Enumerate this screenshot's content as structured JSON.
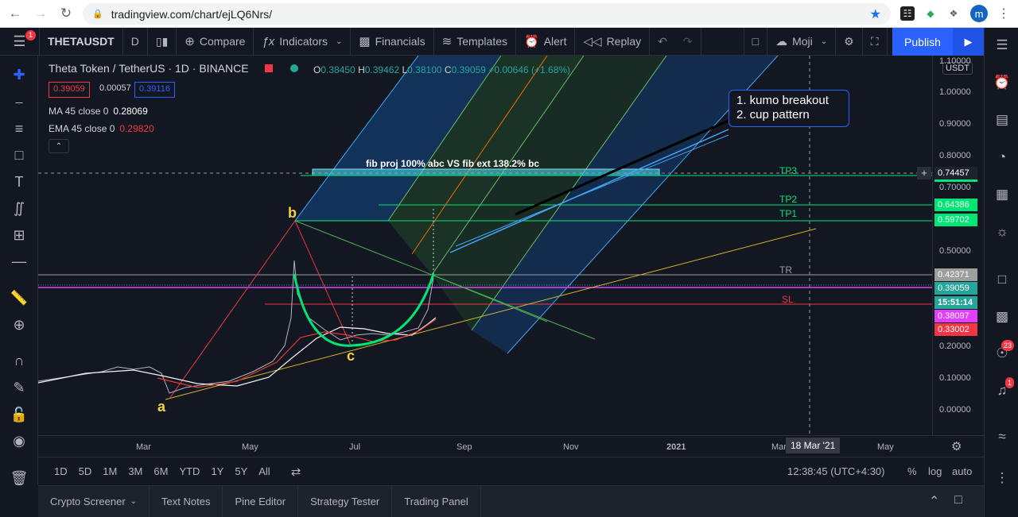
{
  "browser": {
    "url": "tradingview.com/chart/ejLQ6Nrs/",
    "avatar_letter": "m"
  },
  "toolbar": {
    "menu_badge": "1",
    "symbol": "THETAUSDT",
    "interval": "D",
    "compare": "Compare",
    "indicators": "Indicators",
    "financials": "Financials",
    "templates": "Templates",
    "alert": "Alert",
    "replay": "Replay",
    "layout_name": "Moji",
    "publish": "Publish"
  },
  "legend": {
    "title": "Theta Token / TetherUS · 1D · BINANCE",
    "o_label": "O",
    "o": "0.38450",
    "h_label": "H",
    "h": "0.39462",
    "l_label": "L",
    "l": "0.38100",
    "c_label": "C",
    "c": "0.39059",
    "change": "+0.00646 (+1.68%)",
    "bid": "0.39059",
    "spread": "0.00057",
    "ask": "0.39116",
    "ma_label": "MA 45 close 0",
    "ma_value": "0.28069",
    "ema_label": "EMA 45 close 0",
    "ema_value": "0.29820"
  },
  "annotations": {
    "note_line1": "1. kumo breakout",
    "note_line2": "2. cup pattern",
    "fib_text": "fib proj 100% abc VS fib ext 138.2% bc",
    "point_a": "a",
    "point_b": "b",
    "point_c": "c",
    "tp3": "TP3",
    "tp2": "TP2",
    "tp1": "TP1",
    "tr": "TR",
    "sl": "SL"
  },
  "price_axis": {
    "currency": "USDT",
    "ticks": [
      "1.10000",
      "1.00000",
      "0.90000",
      "0.80000",
      "0.70000",
      "0.50000",
      "0.20000",
      "0.10000",
      "0.00000"
    ],
    "labels": {
      "tp3": "0.74457",
      "tp2": "0.64386",
      "tp1": "0.59702",
      "tr": "0.42371",
      "last": "0.39059",
      "countdown": "15:51:14",
      "magenta": "0.38097",
      "sl": "0.33002"
    },
    "colors": {
      "tp": "#00e676",
      "tr": "#9e9e9e",
      "last": "#26a69a",
      "countdown": "#26a69a",
      "magenta": "#e040fb",
      "sl": "#f23645"
    }
  },
  "time_axis": {
    "ticks": [
      "Mar",
      "May",
      "Jul",
      "Sep",
      "Nov",
      "2021",
      "Mar",
      "May"
    ],
    "crosshair_date": "18 Mar '21"
  },
  "range_bar": {
    "ranges": [
      "1D",
      "5D",
      "1M",
      "3M",
      "6M",
      "YTD",
      "1Y",
      "5Y",
      "All"
    ],
    "clock": "12:38:45 (UTC+4:30)",
    "percent": "%",
    "log": "log",
    "auto": "auto"
  },
  "panels": {
    "tabs": [
      "Crypto Screener",
      "Text Notes",
      "Pine Editor",
      "Strategy Tester",
      "Trading Panel"
    ]
  },
  "right_bar": {
    "badge_ideas": "23",
    "badge_notifications": "1"
  }
}
